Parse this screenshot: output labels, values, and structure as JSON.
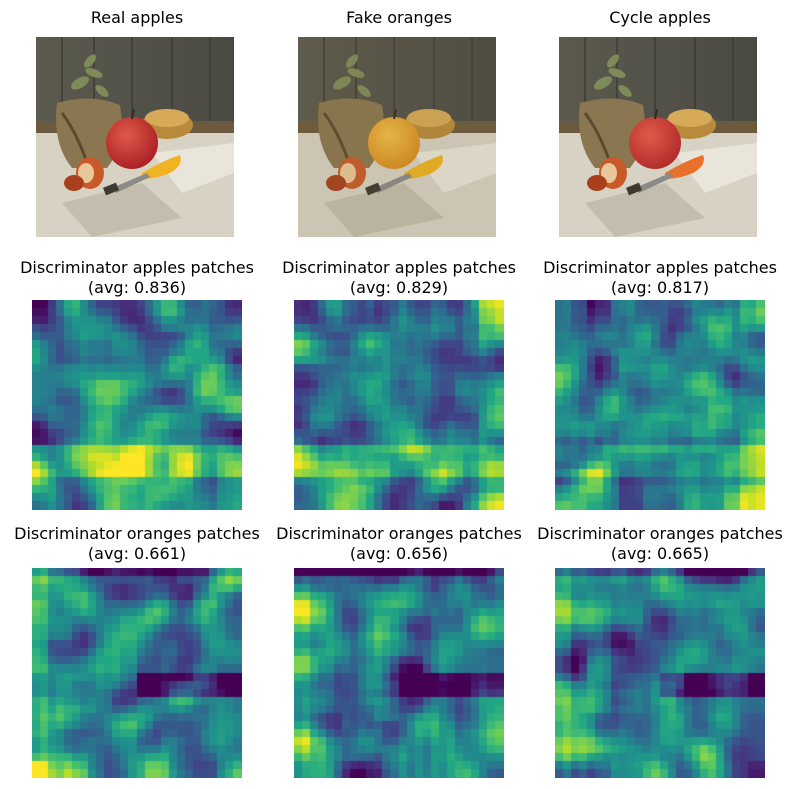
{
  "figure": {
    "rows": [
      {
        "kind": "image",
        "panels": [
          {
            "title": "Real apples",
            "variant": "real"
          },
          {
            "title": "Fake oranges",
            "variant": "fake"
          },
          {
            "title": "Cycle apples",
            "variant": "cycle"
          }
        ]
      },
      {
        "kind": "heatmap",
        "panels": [
          {
            "title_line1": "Discriminator apples patches",
            "title_line2": "(avg: 0.836)"
          },
          {
            "title_line1": "Discriminator apples patches",
            "title_line2": "(avg: 0.829)"
          },
          {
            "title_line1": "Discriminator apples patches",
            "title_line2": "(avg: 0.817)"
          }
        ]
      },
      {
        "kind": "heatmap",
        "panels": [
          {
            "title_line1": "Discriminator oranges patches",
            "title_line2": "(avg: 0.661)"
          },
          {
            "title_line1": "Discriminator oranges patches",
            "title_line2": "(avg: 0.656)"
          },
          {
            "title_line1": "Discriminator oranges patches",
            "title_line2": "(avg: 0.665)"
          }
        ]
      }
    ],
    "colormap": "viridis"
  }
}
